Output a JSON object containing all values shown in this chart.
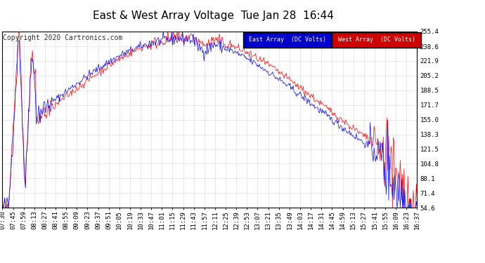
{
  "title": "East & West Array Voltage  Tue Jan 28  16:44",
  "copyright": "Copyright 2020 Cartronics.com",
  "legend_east": "East Array  (DC Volts)",
  "legend_west": "West Array  (DC Volts)",
  "east_color": "#0000ff",
  "west_color": "#ff0000",
  "legend_east_bg": "#0000cc",
  "legend_west_bg": "#cc0000",
  "background_color": "#ffffff",
  "plot_bg_color": "#ffffff",
  "grid_color": "#bbbbbb",
  "yticks": [
    54.6,
    71.4,
    88.1,
    104.8,
    121.5,
    138.3,
    155.0,
    171.7,
    188.5,
    205.2,
    221.9,
    238.6,
    255.4
  ],
  "xtick_labels": [
    "07:30",
    "07:45",
    "07:59",
    "08:13",
    "08:27",
    "08:41",
    "08:55",
    "09:09",
    "09:23",
    "09:37",
    "09:51",
    "10:05",
    "10:19",
    "10:33",
    "10:47",
    "11:01",
    "11:15",
    "11:29",
    "11:43",
    "11:57",
    "12:11",
    "12:25",
    "12:39",
    "12:53",
    "13:07",
    "13:21",
    "13:35",
    "13:49",
    "14:03",
    "14:17",
    "14:31",
    "14:45",
    "14:59",
    "15:13",
    "15:27",
    "15:41",
    "15:55",
    "16:09",
    "16:23",
    "16:37"
  ],
  "ymin": 54.6,
  "ymax": 255.4,
  "title_fontsize": 11,
  "axis_fontsize": 6.5,
  "copyright_fontsize": 7
}
